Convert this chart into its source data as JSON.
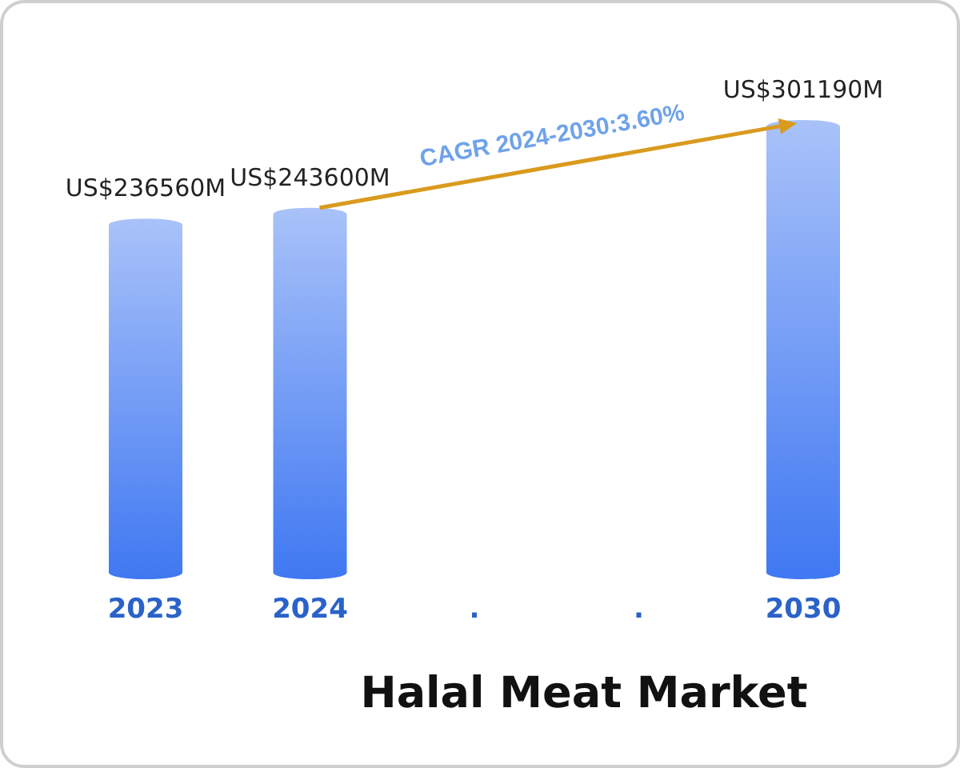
{
  "chart_data": {
    "type": "bar",
    "title": "Halal Meat Market",
    "categories": [
      "2023",
      "2024",
      ".",
      ".",
      "2030"
    ],
    "values": [
      236560000000,
      243600000000,
      null,
      null,
      301190000000
    ],
    "value_labels": [
      "US$236560M",
      "US$243600M",
      null,
      null,
      "US$301190M"
    ],
    "color": "#3f78f2",
    "annotations": [
      "CAGR 2024-2030:3.60%"
    ]
  }
}
